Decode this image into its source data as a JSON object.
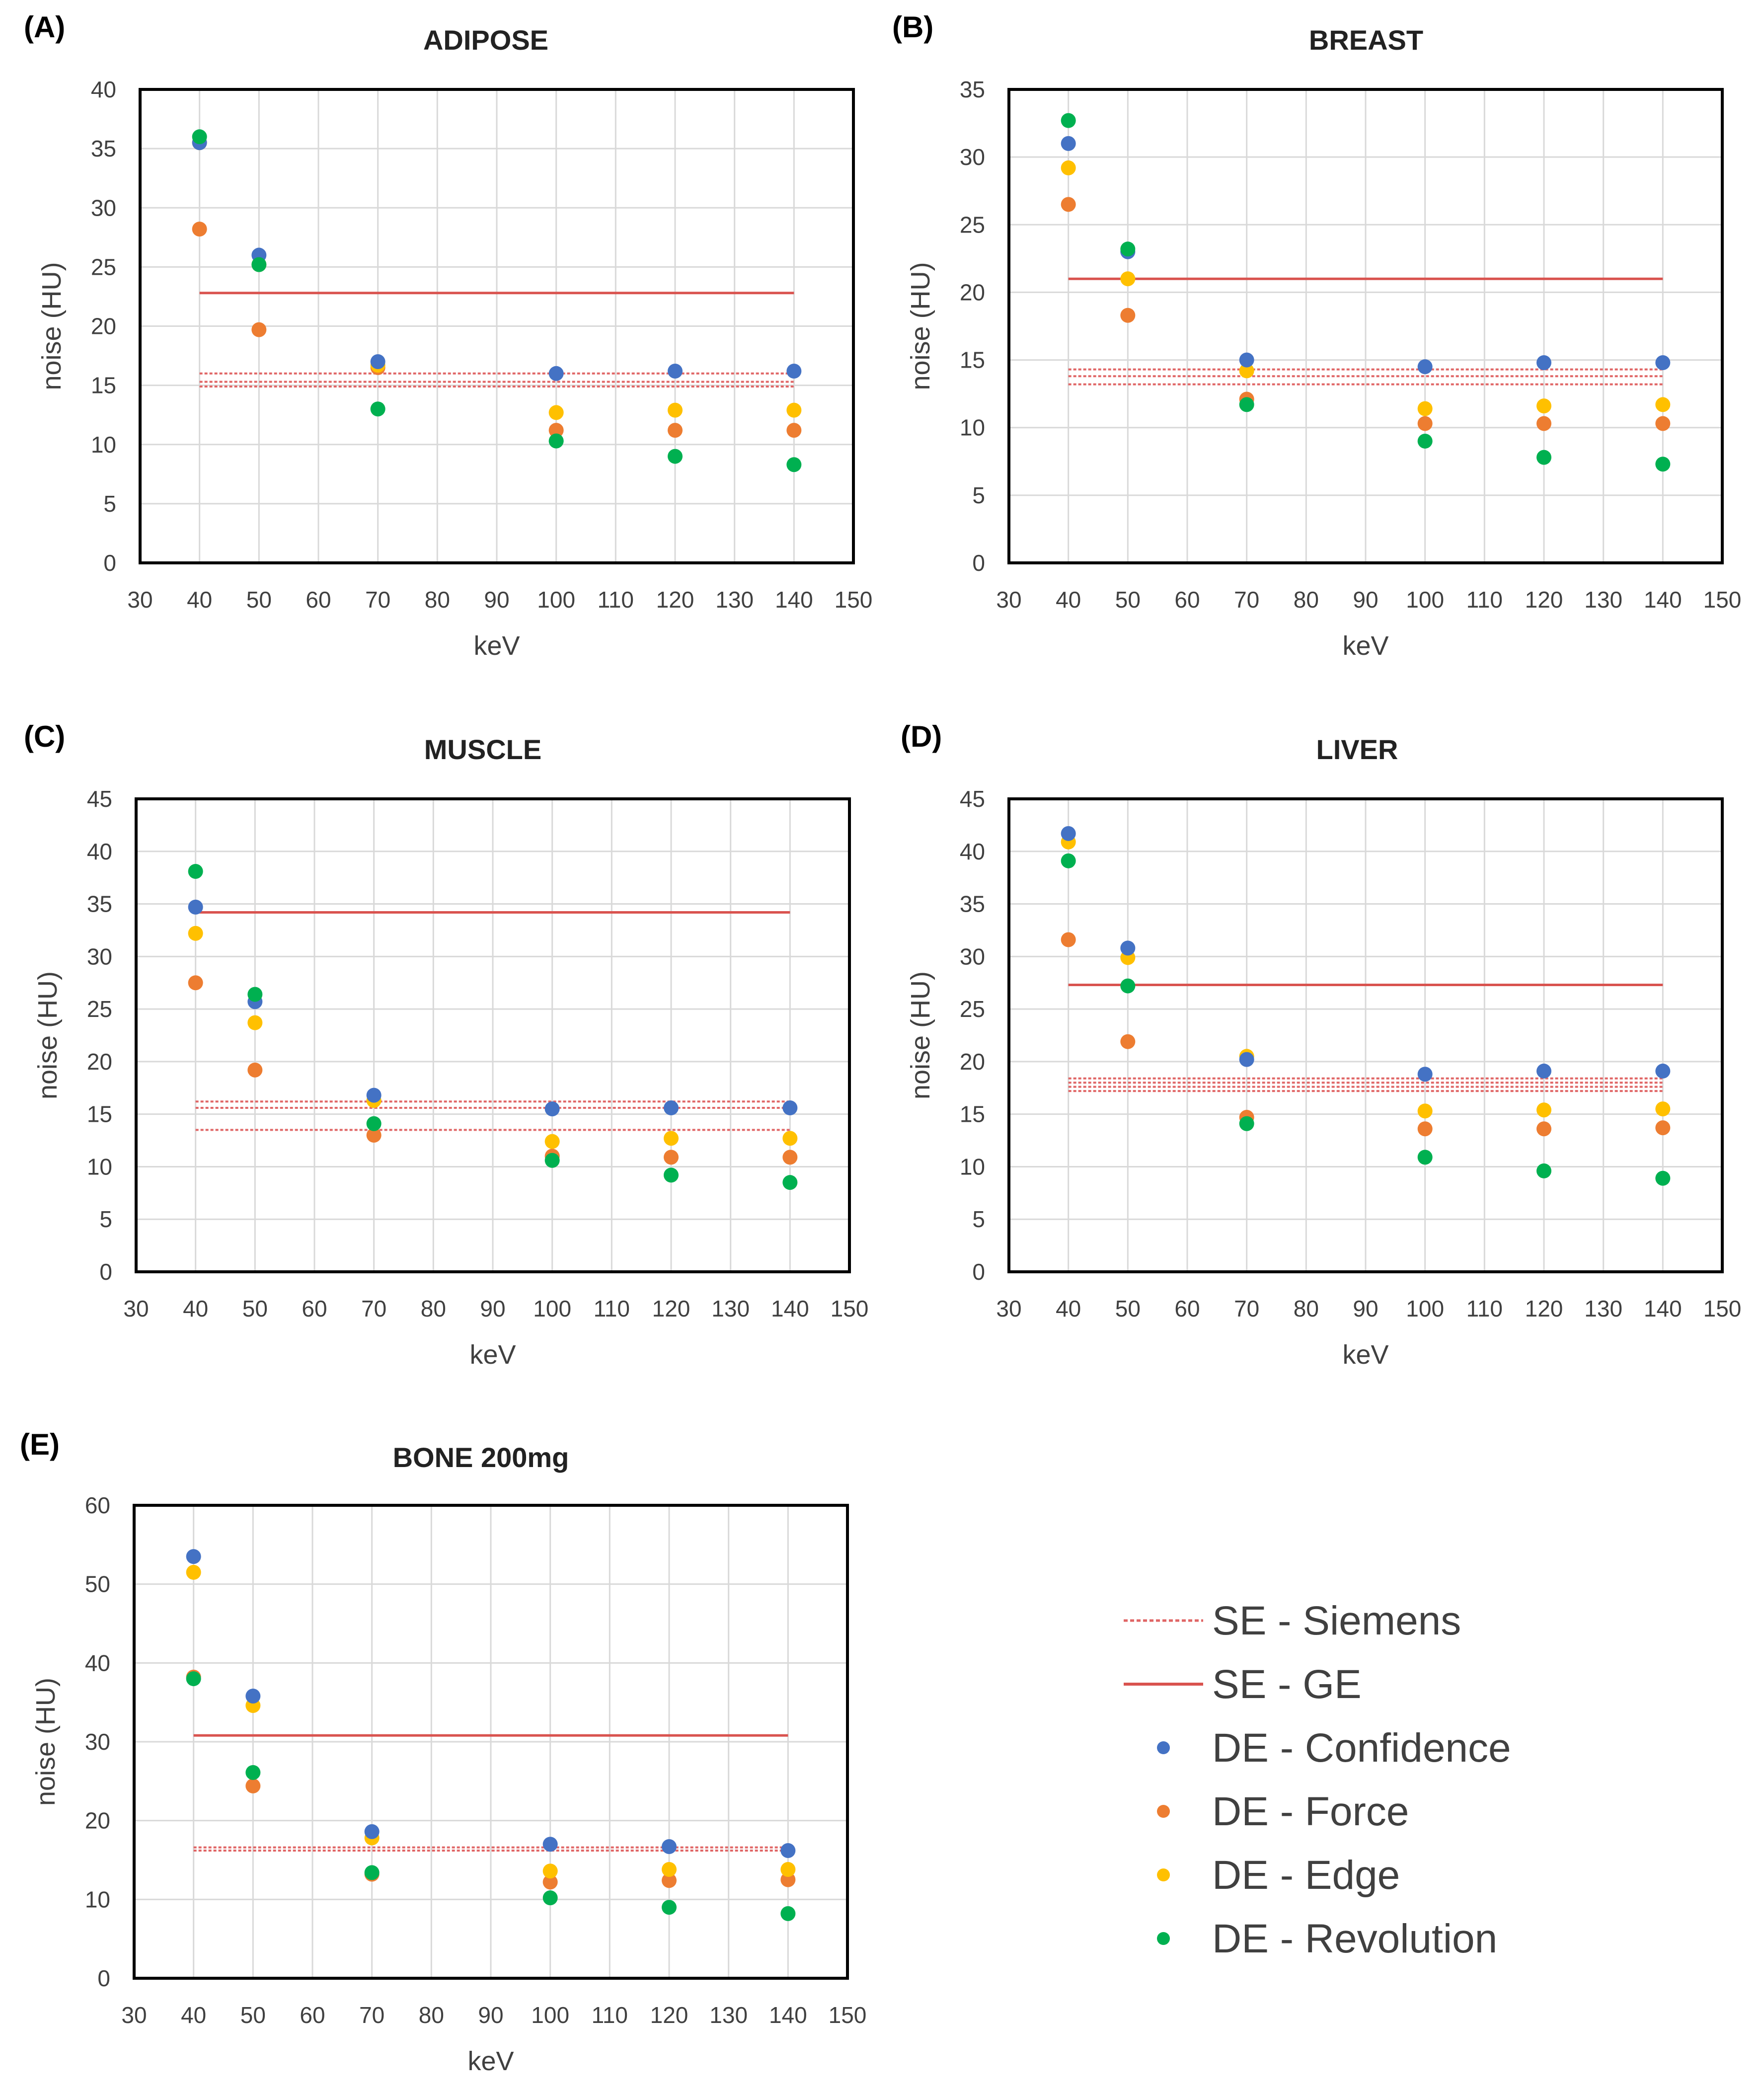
{
  "legend": {
    "items": [
      {
        "label": "SE - Siemens",
        "style": "dotted-line",
        "color": "#e06666"
      },
      {
        "label": "SE - GE",
        "style": "solid-line",
        "color": "#d9534f"
      },
      {
        "label": "DE - Confidence",
        "style": "dot",
        "color": "#4472c4"
      },
      {
        "label": "DE - Force",
        "style": "dot",
        "color": "#ed7d31"
      },
      {
        "label": "DE - Edge",
        "style": "dot",
        "color": "#ffc000"
      },
      {
        "label": "DE - Revolution",
        "style": "dot",
        "color": "#00b050"
      }
    ]
  },
  "colors": {
    "confidence": "#4472c4",
    "force": "#ed7d31",
    "edge": "#ffc000",
    "revolution": "#00b050",
    "ge_line": "#d9534f",
    "siemens_line": "#e06666",
    "grid": "#d9d9d9"
  },
  "chart_data": [
    {
      "panel": "(A)",
      "type": "scatter",
      "title": "ADIPOSE",
      "xlabel": "keV",
      "ylabel": "noise (HU)",
      "xlim": [
        30,
        150
      ],
      "ylim": [
        0,
        40
      ],
      "xticks": [
        30,
        40,
        50,
        60,
        70,
        80,
        90,
        100,
        110,
        120,
        130,
        140,
        150
      ],
      "yticks": [
        0,
        5,
        10,
        15,
        20,
        25,
        30,
        35,
        40
      ],
      "x": [
        40,
        50,
        70,
        100,
        120,
        140
      ],
      "series": [
        {
          "name": "DE - Confidence",
          "values": [
            35.5,
            26.0,
            17.0,
            16.0,
            16.2,
            16.2
          ]
        },
        {
          "name": "DE - Force",
          "values": [
            28.2,
            19.7,
            16.5,
            11.2,
            11.2,
            11.2
          ]
        },
        {
          "name": "DE - Edge",
          "values": [
            35.5,
            25.2,
            16.7,
            12.7,
            12.9,
            12.9
          ]
        },
        {
          "name": "DE - Revolution",
          "values": [
            36.0,
            25.2,
            13.0,
            10.3,
            9.0,
            8.3
          ]
        }
      ],
      "reference_lines": [
        {
          "name": "SE - GE",
          "style": "solid",
          "values": [
            22.8
          ],
          "x_range": [
            40,
            140
          ]
        },
        {
          "name": "SE - Siemens",
          "style": "dotted",
          "values": [
            16.0,
            15.3,
            14.9
          ],
          "x_range": [
            40,
            140
          ]
        }
      ]
    },
    {
      "panel": "(B)",
      "type": "scatter",
      "title": "BREAST",
      "xlabel": "keV",
      "ylabel": "noise (HU)",
      "xlim": [
        30,
        150
      ],
      "ylim": [
        0,
        35
      ],
      "xticks": [
        30,
        40,
        50,
        60,
        70,
        80,
        90,
        100,
        110,
        120,
        130,
        140,
        150
      ],
      "yticks": [
        0,
        5,
        10,
        15,
        20,
        25,
        30,
        35
      ],
      "x": [
        40,
        50,
        70,
        100,
        120,
        140
      ],
      "series": [
        {
          "name": "DE - Confidence",
          "values": [
            31.0,
            23.0,
            15.0,
            14.5,
            14.8,
            14.8
          ]
        },
        {
          "name": "DE - Force",
          "values": [
            26.5,
            18.3,
            12.1,
            10.3,
            10.3,
            10.3
          ]
        },
        {
          "name": "DE - Edge",
          "values": [
            29.2,
            21.0,
            14.2,
            11.4,
            11.6,
            11.7
          ]
        },
        {
          "name": "DE - Revolution",
          "values": [
            32.7,
            23.2,
            11.7,
            9.0,
            7.8,
            7.3
          ]
        }
      ],
      "reference_lines": [
        {
          "name": "SE - GE",
          "style": "solid",
          "values": [
            21.0
          ],
          "x_range": [
            40,
            140
          ]
        },
        {
          "name": "SE - Siemens",
          "style": "dotted",
          "values": [
            14.3,
            13.8,
            13.2
          ],
          "x_range": [
            40,
            140
          ]
        }
      ]
    },
    {
      "panel": "(C)",
      "type": "scatter",
      "title": "MUSCLE",
      "xlabel": "keV",
      "ylabel": "noise (HU)",
      "xlim": [
        30,
        150
      ],
      "ylim": [
        0,
        45
      ],
      "xticks": [
        30,
        40,
        50,
        60,
        70,
        80,
        90,
        100,
        110,
        120,
        130,
        140,
        150
      ],
      "yticks": [
        0,
        5,
        10,
        15,
        20,
        25,
        30,
        35,
        40,
        45
      ],
      "x": [
        40,
        50,
        70,
        100,
        120,
        140
      ],
      "series": [
        {
          "name": "DE - Confidence",
          "values": [
            34.7,
            25.7,
            16.8,
            15.5,
            15.6,
            15.6
          ]
        },
        {
          "name": "DE - Force",
          "values": [
            27.5,
            19.2,
            13.0,
            11.0,
            10.9,
            10.9
          ]
        },
        {
          "name": "DE - Edge",
          "values": [
            32.2,
            23.7,
            16.3,
            12.4,
            12.7,
            12.7
          ]
        },
        {
          "name": "DE - Revolution",
          "values": [
            38.1,
            26.4,
            14.1,
            10.6,
            9.2,
            8.5
          ]
        }
      ],
      "reference_lines": [
        {
          "name": "SE - GE",
          "style": "solid",
          "values": [
            34.2
          ],
          "x_range": [
            40,
            140
          ]
        },
        {
          "name": "SE - Siemens",
          "style": "dotted",
          "values": [
            16.2,
            15.6,
            13.5
          ],
          "x_range": [
            40,
            140
          ]
        }
      ]
    },
    {
      "panel": "(D)",
      "type": "scatter",
      "title": "LIVER",
      "xlabel": "keV",
      "ylabel": "noise (HU)",
      "xlim": [
        30,
        150
      ],
      "ylim": [
        0,
        45
      ],
      "xticks": [
        30,
        40,
        50,
        60,
        70,
        80,
        90,
        100,
        110,
        120,
        130,
        140,
        150
      ],
      "yticks": [
        0,
        5,
        10,
        15,
        20,
        25,
        30,
        35,
        40,
        45
      ],
      "x": [
        40,
        50,
        70,
        100,
        120,
        140
      ],
      "series": [
        {
          "name": "DE - Confidence",
          "values": [
            41.7,
            30.8,
            20.2,
            18.8,
            19.1,
            19.1
          ]
        },
        {
          "name": "DE - Force",
          "values": [
            31.6,
            21.9,
            14.7,
            13.6,
            13.6,
            13.7
          ]
        },
        {
          "name": "DE - Edge",
          "values": [
            40.9,
            29.9,
            20.5,
            15.3,
            15.4,
            15.5
          ]
        },
        {
          "name": "DE - Revolution",
          "values": [
            39.1,
            27.2,
            14.1,
            10.9,
            9.6,
            8.9
          ]
        }
      ],
      "reference_lines": [
        {
          "name": "SE - GE",
          "style": "solid",
          "values": [
            27.3
          ],
          "x_range": [
            40,
            140
          ]
        },
        {
          "name": "SE - Siemens",
          "style": "dotted",
          "values": [
            18.4,
            18.0,
            17.6,
            17.2
          ],
          "x_range": [
            40,
            140
          ]
        }
      ]
    },
    {
      "panel": "(E)",
      "type": "scatter",
      "title": "BONE 200mg",
      "xlabel": "keV",
      "ylabel": "noise (HU)",
      "xlim": [
        30,
        150
      ],
      "ylim": [
        0,
        60
      ],
      "xticks": [
        30,
        40,
        50,
        60,
        70,
        80,
        90,
        100,
        110,
        120,
        130,
        140,
        150
      ],
      "yticks": [
        0,
        10,
        20,
        30,
        40,
        50,
        60
      ],
      "x": [
        40,
        50,
        70,
        100,
        120,
        140
      ],
      "series": [
        {
          "name": "DE - Confidence",
          "values": [
            53.5,
            35.8,
            18.6,
            17.0,
            16.7,
            16.2
          ]
        },
        {
          "name": "DE - Force",
          "values": [
            38.2,
            24.4,
            13.2,
            12.2,
            12.4,
            12.5
          ]
        },
        {
          "name": "DE - Edge",
          "values": [
            51.5,
            34.6,
            17.8,
            13.6,
            13.8,
            13.8
          ]
        },
        {
          "name": "DE - Revolution",
          "values": [
            38.0,
            26.1,
            13.4,
            10.2,
            9.0,
            8.2
          ]
        }
      ],
      "reference_lines": [
        {
          "name": "SE - GE",
          "style": "solid",
          "values": [
            30.8
          ],
          "x_range": [
            40,
            140
          ]
        },
        {
          "name": "SE - Siemens",
          "style": "dotted",
          "values": [
            16.6,
            16.2
          ],
          "x_range": [
            40,
            140
          ]
        }
      ]
    }
  ]
}
